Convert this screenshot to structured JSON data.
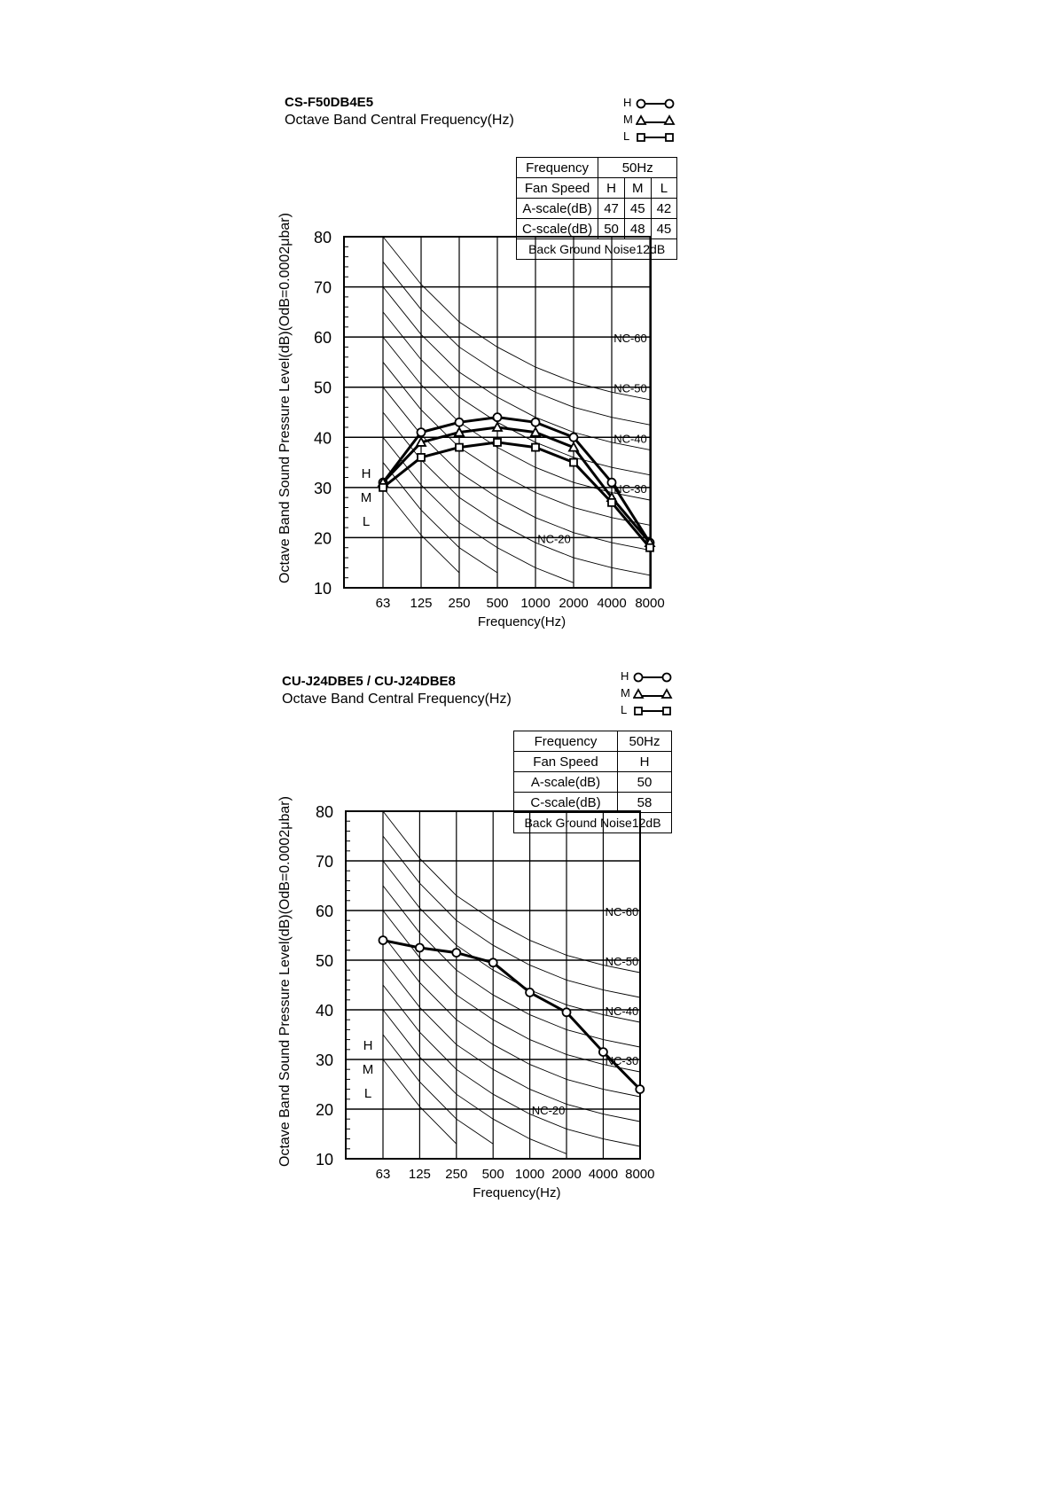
{
  "chart_data": [
    {
      "type": "line",
      "title": "CS-F50DB4E5",
      "subtitle": "Octave Band Central Frequency(Hz)",
      "xlabel": "Frequency(Hz)",
      "ylabel": "Octave Band Sound Pressure Level(dB)(OdB=0.0002μbar)",
      "categories": [
        "63",
        "125",
        "250",
        "500",
        "1000",
        "2000",
        "4000",
        "8000"
      ],
      "ylim": [
        10,
        80
      ],
      "yticks": [
        10,
        20,
        30,
        40,
        50,
        60,
        70,
        80
      ],
      "grid": true,
      "legend_position": "top-right",
      "legend": [
        {
          "label": "H",
          "marker": "circle"
        },
        {
          "label": "M",
          "marker": "triangle"
        },
        {
          "label": "L",
          "marker": "square"
        }
      ],
      "series": [
        {
          "name": "H",
          "marker": "circle",
          "values": [
            31,
            41,
            43,
            44,
            43,
            40,
            31,
            19
          ]
        },
        {
          "name": "M",
          "marker": "triangle",
          "values": [
            31,
            39,
            41,
            42,
            41,
            38,
            28,
            19
          ]
        },
        {
          "name": "L",
          "marker": "square",
          "values": [
            30,
            36,
            38,
            39,
            38,
            35,
            27,
            18
          ]
        }
      ],
      "side_labels": [
        "H",
        "M",
        "L"
      ],
      "nc_labels": [
        "NC-60",
        "NC-50",
        "NC-40",
        "NC-30",
        "NC-20"
      ],
      "table": {
        "rows": [
          [
            "Frequency",
            "50Hz"
          ],
          [
            "Fan Speed",
            "H",
            "M",
            "L"
          ],
          [
            "A-scale(dB)",
            "47",
            "45",
            "42"
          ],
          [
            "C-scale(dB)",
            "50",
            "48",
            "45"
          ]
        ],
        "footer": "Back Ground Noise12dB"
      }
    },
    {
      "type": "line",
      "title": "CU-J24DBE5 / CU-J24DBE8",
      "subtitle": "Octave Band Central Frequency(Hz)",
      "xlabel": "Frequency(Hz)",
      "ylabel": "Octave Band Sound Pressure Level(dB)(OdB=0.0002μbar)",
      "categories": [
        "63",
        "125",
        "250",
        "500",
        "1000",
        "2000",
        "4000",
        "8000"
      ],
      "ylim": [
        10,
        80
      ],
      "yticks": [
        10,
        20,
        30,
        40,
        50,
        60,
        70,
        80
      ],
      "grid": true,
      "legend_position": "top-right",
      "legend": [
        {
          "label": "H",
          "marker": "circle"
        },
        {
          "label": "M",
          "marker": "triangle"
        },
        {
          "label": "L",
          "marker": "square"
        }
      ],
      "series": [
        {
          "name": "H",
          "marker": "circle",
          "values": [
            54,
            52.5,
            51.5,
            49.5,
            43.5,
            39.5,
            31.5,
            24
          ]
        }
      ],
      "side_labels": [
        "H",
        "M",
        "L"
      ],
      "nc_labels": [
        "NC-60",
        "NC-50",
        "NC-40",
        "NC-30",
        "NC-20"
      ],
      "table": {
        "rows": [
          [
            "Frequency",
            "50Hz"
          ],
          [
            "Fan Speed",
            "H"
          ],
          [
            "A-scale(dB)",
            "50"
          ],
          [
            "C-scale(dB)",
            "58"
          ]
        ],
        "footer": "Back Ground Noise12dB"
      }
    }
  ]
}
